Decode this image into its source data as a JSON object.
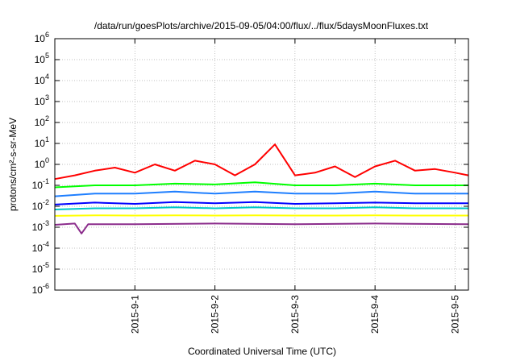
{
  "chart_data": {
    "type": "line",
    "title": "/data/run/goesPlots/archive/2015-09-05/04:00/flux/../flux/5daysMoonFluxes.txt",
    "xlabel": "Coordinated Universal Time (UTC)",
    "ylabel": "protons/cm²-s-sr-MeV",
    "y_scale": "log",
    "ylim": [
      1e-06,
      1000000.0
    ],
    "y_ticks": [
      {
        "base": "10",
        "exp": "-6",
        "value": 1e-06
      },
      {
        "base": "10",
        "exp": "-5",
        "value": 1e-05
      },
      {
        "base": "10",
        "exp": "-4",
        "value": 0.0001
      },
      {
        "base": "10",
        "exp": "-3",
        "value": 0.001
      },
      {
        "base": "10",
        "exp": "-2",
        "value": 0.01
      },
      {
        "base": "10",
        "exp": "-1",
        "value": 0.1
      },
      {
        "base": "10",
        "exp": "0",
        "value": 1
      },
      {
        "base": "10",
        "exp": "1",
        "value": 10
      },
      {
        "base": "10",
        "exp": "2",
        "value": 100
      },
      {
        "base": "10",
        "exp": "3",
        "value": 1000
      },
      {
        "base": "10",
        "exp": "4",
        "value": 10000
      },
      {
        "base": "10",
        "exp": "5",
        "value": 100000
      },
      {
        "base": "10",
        "exp": "6",
        "value": 1000000
      }
    ],
    "xlim": [
      "2015-08-31T00:00",
      "2015-09-05T04:00"
    ],
    "x_ticks": [
      {
        "label": "2015-9-1",
        "value": "2015-09-01T00:00"
      },
      {
        "label": "2015-9-2",
        "value": "2015-09-02T00:00"
      },
      {
        "label": "2015-9-3",
        "value": "2015-09-03T00:00"
      },
      {
        "label": "2015-9-4",
        "value": "2015-09-04T00:00"
      },
      {
        "label": "2015-9-5",
        "value": "2015-09-05T00:00"
      }
    ],
    "grid": true,
    "series": [
      {
        "color": "#ff0000",
        "points": [
          [
            "2015-08-31T00:00",
            0.2
          ],
          [
            "2015-08-31T06:00",
            0.3
          ],
          [
            "2015-08-31T12:00",
            0.5
          ],
          [
            "2015-08-31T18:00",
            0.7
          ],
          [
            "2015-09-01T00:00",
            0.4
          ],
          [
            "2015-09-01T06:00",
            1.0
          ],
          [
            "2015-09-01T12:00",
            0.5
          ],
          [
            "2015-09-01T18:00",
            1.5
          ],
          [
            "2015-09-02T00:00",
            1.0
          ],
          [
            "2015-09-02T06:00",
            0.3
          ],
          [
            "2015-09-02T12:00",
            1.0
          ],
          [
            "2015-09-02T18:00",
            9.0
          ],
          [
            "2015-09-03T00:00",
            0.3
          ],
          [
            "2015-09-03T06:00",
            0.4
          ],
          [
            "2015-09-03T12:00",
            0.8
          ],
          [
            "2015-09-03T18:00",
            0.25
          ],
          [
            "2015-09-04T00:00",
            0.8
          ],
          [
            "2015-09-04T06:00",
            1.5
          ],
          [
            "2015-09-04T12:00",
            0.5
          ],
          [
            "2015-09-04T18:00",
            0.6
          ],
          [
            "2015-09-05T00:00",
            0.4
          ],
          [
            "2015-09-05T04:00",
            0.3
          ]
        ]
      },
      {
        "color": "#00ff00",
        "points": [
          [
            "2015-08-31T00:00",
            0.08
          ],
          [
            "2015-08-31T12:00",
            0.1
          ],
          [
            "2015-09-01T00:00",
            0.1
          ],
          [
            "2015-09-01T12:00",
            0.12
          ],
          [
            "2015-09-02T00:00",
            0.11
          ],
          [
            "2015-09-02T12:00",
            0.14
          ],
          [
            "2015-09-03T00:00",
            0.1
          ],
          [
            "2015-09-03T12:00",
            0.1
          ],
          [
            "2015-09-04T00:00",
            0.12
          ],
          [
            "2015-09-04T12:00",
            0.1
          ],
          [
            "2015-09-05T04:00",
            0.1
          ]
        ]
      },
      {
        "color": "#1f7fff",
        "points": [
          [
            "2015-08-31T00:00",
            0.03
          ],
          [
            "2015-08-31T12:00",
            0.04
          ],
          [
            "2015-09-01T00:00",
            0.04
          ],
          [
            "2015-09-01T12:00",
            0.05
          ],
          [
            "2015-09-02T00:00",
            0.04
          ],
          [
            "2015-09-02T12:00",
            0.05
          ],
          [
            "2015-09-03T00:00",
            0.04
          ],
          [
            "2015-09-03T12:00",
            0.04
          ],
          [
            "2015-09-04T00:00",
            0.05
          ],
          [
            "2015-09-04T12:00",
            0.04
          ],
          [
            "2015-09-05T04:00",
            0.04
          ]
        ]
      },
      {
        "color": "#0000ff",
        "points": [
          [
            "2015-08-31T00:00",
            0.012
          ],
          [
            "2015-08-31T12:00",
            0.015
          ],
          [
            "2015-09-01T00:00",
            0.013
          ],
          [
            "2015-09-01T12:00",
            0.016
          ],
          [
            "2015-09-02T00:00",
            0.014
          ],
          [
            "2015-09-02T12:00",
            0.016
          ],
          [
            "2015-09-03T00:00",
            0.013
          ],
          [
            "2015-09-03T12:00",
            0.014
          ],
          [
            "2015-09-04T00:00",
            0.015
          ],
          [
            "2015-09-04T12:00",
            0.014
          ],
          [
            "2015-09-05T04:00",
            0.014
          ]
        ]
      },
      {
        "color": "#00c8c8",
        "points": [
          [
            "2015-08-31T00:00",
            0.007
          ],
          [
            "2015-08-31T12:00",
            0.008
          ],
          [
            "2015-09-01T00:00",
            0.008
          ],
          [
            "2015-09-01T12:00",
            0.009
          ],
          [
            "2015-09-02T00:00",
            0.008
          ],
          [
            "2015-09-02T12:00",
            0.009
          ],
          [
            "2015-09-03T00:00",
            0.008
          ],
          [
            "2015-09-03T12:00",
            0.008
          ],
          [
            "2015-09-04T00:00",
            0.009
          ],
          [
            "2015-09-04T12:00",
            0.008
          ],
          [
            "2015-09-05T04:00",
            0.008
          ]
        ]
      },
      {
        "color": "#ffff00",
        "points": [
          [
            "2015-08-31T00:00",
            0.0035
          ],
          [
            "2015-08-31T12:00",
            0.0037
          ],
          [
            "2015-09-01T00:00",
            0.0036
          ],
          [
            "2015-09-01T12:00",
            0.0037
          ],
          [
            "2015-09-02T00:00",
            0.0036
          ],
          [
            "2015-09-02T12:00",
            0.0037
          ],
          [
            "2015-09-03T00:00",
            0.0036
          ],
          [
            "2015-09-03T12:00",
            0.0036
          ],
          [
            "2015-09-04T00:00",
            0.0037
          ],
          [
            "2015-09-04T12:00",
            0.0036
          ],
          [
            "2015-09-05T04:00",
            0.0036
          ]
        ]
      },
      {
        "color": "#8b2c8b",
        "points": [
          [
            "2015-08-31T00:00",
            0.0013
          ],
          [
            "2015-08-31T06:00",
            0.0015
          ],
          [
            "2015-08-31T08:00",
            0.0005
          ],
          [
            "2015-08-31T10:00",
            0.0014
          ],
          [
            "2015-09-01T00:00",
            0.0014
          ],
          [
            "2015-09-02T00:00",
            0.0015
          ],
          [
            "2015-09-03T00:00",
            0.0014
          ],
          [
            "2015-09-04T00:00",
            0.0015
          ],
          [
            "2015-09-05T04:00",
            0.0014
          ]
        ]
      }
    ]
  }
}
